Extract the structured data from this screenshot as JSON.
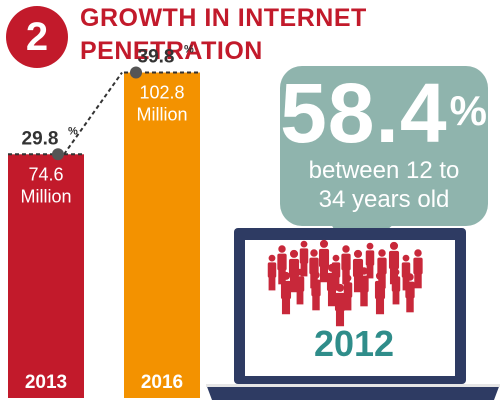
{
  "header": {
    "number": "2",
    "title_line1": "GROWTH IN INTERNET",
    "title_line2": "PENETRATION"
  },
  "chart_data": {
    "type": "bar",
    "categories": [
      "2013",
      "2016"
    ],
    "values": [
      29.8,
      39.8
    ],
    "value_labels": [
      "29.8",
      "39.8"
    ],
    "value_unit": "%",
    "bar_labels": [
      [
        "74.6",
        "Million"
      ],
      [
        "102.8",
        "Million"
      ]
    ],
    "bar_colors": [
      "#c21a2b",
      "#f39200"
    ],
    "title": "",
    "xlabel": "",
    "ylabel": "",
    "ylim": [
      0,
      45
    ]
  },
  "callout": {
    "value": "58.4",
    "unit": "%",
    "line1": "between 12 to",
    "line2": "34 years old"
  },
  "laptop": {
    "year": "2012"
  },
  "colors": {
    "red": "#c21a2b",
    "orange": "#f39200",
    "teal": "#8fb4ad",
    "navy": "#2e3b63",
    "year_teal": "#2f8d8a",
    "people": "#c8283a"
  }
}
